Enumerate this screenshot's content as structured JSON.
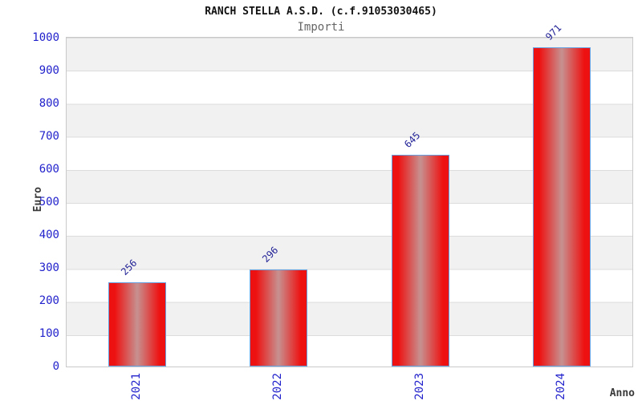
{
  "chart_data": {
    "type": "bar",
    "title": "RANCH STELLA A.S.D. (c.f.91053030465)",
    "subtitle": "Importi",
    "categories": [
      "2021",
      "2022",
      "2023",
      "2024"
    ],
    "values": [
      256,
      296,
      645,
      971
    ],
    "xlabel": "Anno",
    "ylabel": "Euro",
    "ylim": [
      0,
      1000
    ],
    "yticks": [
      0,
      100,
      200,
      300,
      400,
      500,
      600,
      700,
      800,
      900,
      1000
    ],
    "grid": true,
    "bands": "alternating-gray-white",
    "legend_position": "none",
    "value_labels_rotation_deg": -45,
    "x_tick_rotation_deg": -90
  },
  "colors": {
    "bar_red": "#ee1111",
    "bar_mid": "#c79191",
    "bar_border": "#66a0e0",
    "tick_blue": "#2222cc",
    "value_blue": "#1f1f96",
    "band_gray": "#f1f1f1",
    "grid_line": "#dcdcdc",
    "title_color": "#111111",
    "subtitle_color": "#666666",
    "axis_label": "#3a3a3a"
  }
}
